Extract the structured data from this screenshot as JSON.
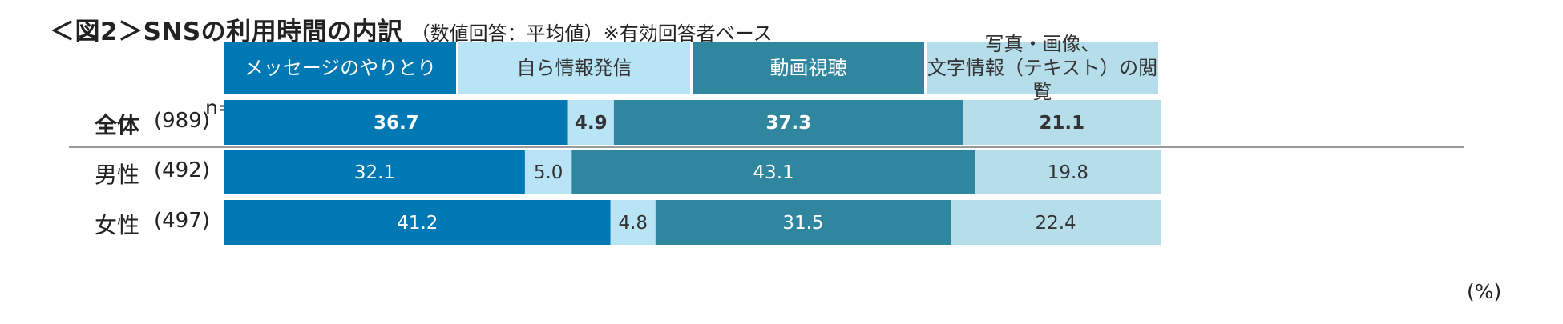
{
  "title": {
    "main": "＜図2＞SNSの利用時間の内訳",
    "sub": "（数値回答：平均値）※有効回答者ベース"
  },
  "n_label": "n=",
  "unit": "(%)",
  "colors": {
    "messaging": "#0078b4",
    "posting": "#b8e4f6",
    "video": "#30869e",
    "reading": "#b6deea"
  },
  "legend": [
    {
      "label": "メッセージのやりとり",
      "text_color": "#ffffff"
    },
    {
      "label": "自ら情報発信",
      "text_color": "#333333"
    },
    {
      "label": "動画視聴",
      "text_color": "#ffffff"
    },
    {
      "label": "写真・画像、\n文字情報（テキスト）の閲覧",
      "text_color": "#333333"
    }
  ],
  "rows": [
    {
      "label": "全体",
      "n": "(989)",
      "bold": true
    },
    {
      "label": "男性",
      "n": "(492)",
      "bold": false
    },
    {
      "label": "女性",
      "n": "(497)",
      "bold": false
    }
  ],
  "chart_data": {
    "type": "bar",
    "orientation": "horizontal",
    "stacked": "100%",
    "categories": [
      "全体",
      "男性",
      "女性"
    ],
    "series": [
      {
        "name": "メッセージのやりとり",
        "values": [
          36.7,
          32.1,
          41.2
        ],
        "labels": [
          "36.7",
          "32.1",
          "41.2"
        ]
      },
      {
        "name": "自ら情報発信",
        "values": [
          4.9,
          5.0,
          4.8
        ],
        "labels": [
          "4.9",
          "5.0",
          "4.8"
        ]
      },
      {
        "name": "動画視聴",
        "values": [
          37.3,
          43.1,
          31.5
        ],
        "labels": [
          "37.3",
          "43.1",
          "31.5"
        ]
      },
      {
        "name": "写真・画像、文字情報（テキスト）の閲覧",
        "values": [
          21.1,
          19.8,
          22.4
        ],
        "labels": [
          "21.1",
          "19.8",
          "22.4"
        ]
      }
    ],
    "xlim": [
      0,
      100
    ],
    "unit": "(%)",
    "legend_position": "top",
    "grid": false
  }
}
